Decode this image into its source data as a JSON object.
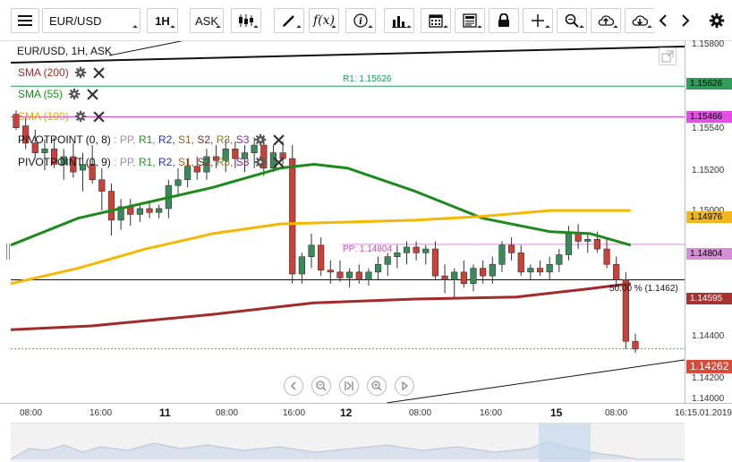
{
  "toolbar": {
    "symbol": "EUR/USD",
    "interval": "1H",
    "side": "ASK",
    "icons": [
      "menu-icon",
      "candles-icon",
      "draw-pen-icon",
      "function-fx-icon",
      "info-icon",
      "indicators-bars-icon",
      "calendar-icon",
      "news-icon",
      "lock-icon",
      "crosshair-icon",
      "zoom-icon",
      "cloud-upload-icon",
      "cloud-download-icon",
      "chevron-left-icon",
      "chevron-right-icon",
      "gear-icon"
    ]
  },
  "legend": {
    "instrument": "EUR/USD, 1H, ASK",
    "sma200": "SMA (200)",
    "sma55": "SMA (55)",
    "sma100": "SMA (100)",
    "pivot1_name": "PIVOTPOINT (0, 8)",
    "pivot2_name": "PIVOTPOINT (0, 9)",
    "pivot_sep": " : ",
    "pivot_items": [
      {
        "text": "PP,",
        "color": "#a8a"
      },
      {
        "text": " R1,",
        "color": "#2a8a2a"
      },
      {
        "text": " R2,",
        "color": "#2233aa"
      },
      {
        "text": " S1,",
        "color": "#aa5522"
      },
      {
        "text": " S2,",
        "color": "#7a2a2a"
      },
      {
        "text": " R3,",
        "color": "#8a7a22"
      },
      {
        "text": " S3",
        "color": "#8a2a8a"
      }
    ]
  },
  "annotations": {
    "r1": "R1: 1.15626",
    "pp": "PP: 1.14804",
    "fib": "50.00 % (1.1462)"
  },
  "price_tags": [
    {
      "text": "1.15626",
      "bg": "#2e9e5a",
      "color": "#000",
      "value": 1.15626
    },
    {
      "text": "1.15466",
      "bg": "#e34fe3",
      "color": "#000",
      "value": 1.15466
    },
    {
      "text": "1.14976",
      "bg": "#f3b61f",
      "color": "#000",
      "value": 1.14976
    },
    {
      "text": "1.14804",
      "bg": "#d58fd5",
      "color": "#000",
      "value": 1.14804
    },
    {
      "text": "1.14595",
      "bg": "#a83232",
      "color": "#ffffff",
      "value": 1.14595
    },
    {
      "text": "1.14262",
      "bg": "#d94a3a",
      "color": "#ffffff",
      "value": 1.14262
    }
  ],
  "axis": {
    "y_ticks": [
      "1.15800",
      "1.15540",
      "1.15200",
      "1.15000",
      "1.14400",
      "1.14200",
      "1.14000"
    ],
    "x_ticks": [
      {
        "text": "08:00",
        "day": false
      },
      {
        "text": "16:00",
        "day": false
      },
      {
        "text": "11",
        "day": true
      },
      {
        "text": "08:00",
        "day": false
      },
      {
        "text": "16:00",
        "day": false
      },
      {
        "text": "12",
        "day": true
      },
      {
        "text": "08:00",
        "day": false
      },
      {
        "text": "16:00",
        "day": false
      },
      {
        "text": "15",
        "day": true
      },
      {
        "text": "08:00",
        "day": false
      },
      {
        "text": "16:15.01.2019",
        "day": false
      }
    ]
  },
  "nav_buttons": [
    "nav-back-icon",
    "zoom-out-icon",
    "reset-view-icon",
    "zoom-in-icon",
    "nav-forward-icon"
  ],
  "colors": {
    "sma200": "#a32a2a",
    "sma55": "#1e8a1e",
    "sma100": "#f5b800",
    "pivot_magenta": "#d63ad6",
    "r1_green": "#1e9a5a",
    "up": "#3a8a5a",
    "down": "#c8423a"
  },
  "chart_data": {
    "type": "candlestick",
    "title": "EUR/USD, 1H, ASK",
    "ylim": [
      1.1398,
      1.1586
    ],
    "x": [
      "10.01 08:00",
      "10.01 16:00",
      "11.01 00:00",
      "11.01 08:00",
      "11.01 16:00",
      "12.01 00:00",
      "14.01 08:00",
      "14.01 16:00",
      "15.01 00:00",
      "15.01 08:00",
      "15.01 16:00"
    ],
    "candles": [
      {
        "o": 1.1548,
        "h": 1.155,
        "l": 1.154,
        "c": 1.1541
      },
      {
        "o": 1.1542,
        "h": 1.1546,
        "l": 1.153,
        "c": 1.1533
      },
      {
        "o": 1.1533,
        "h": 1.154,
        "l": 1.1525,
        "c": 1.1528
      },
      {
        "o": 1.1528,
        "h": 1.1535,
        "l": 1.1519,
        "c": 1.153
      },
      {
        "o": 1.153,
        "h": 1.1536,
        "l": 1.152,
        "c": 1.1522
      },
      {
        "o": 1.1522,
        "h": 1.153,
        "l": 1.1514,
        "c": 1.1526
      },
      {
        "o": 1.1526,
        "h": 1.1533,
        "l": 1.1515,
        "c": 1.1518
      },
      {
        "o": 1.1519,
        "h": 1.1528,
        "l": 1.1508,
        "c": 1.1522
      },
      {
        "o": 1.1522,
        "h": 1.1532,
        "l": 1.1512,
        "c": 1.1514
      },
      {
        "o": 1.1514,
        "h": 1.152,
        "l": 1.1498,
        "c": 1.1508
      },
      {
        "o": 1.1508,
        "h": 1.1512,
        "l": 1.1485,
        "c": 1.1493
      },
      {
        "o": 1.1493,
        "h": 1.1504,
        "l": 1.1488,
        "c": 1.15
      },
      {
        "o": 1.15,
        "h": 1.1504,
        "l": 1.149,
        "c": 1.1496
      },
      {
        "o": 1.1496,
        "h": 1.1502,
        "l": 1.1492,
        "c": 1.1499
      },
      {
        "o": 1.1499,
        "h": 1.1503,
        "l": 1.1494,
        "c": 1.1497
      },
      {
        "o": 1.1497,
        "h": 1.1501,
        "l": 1.1494,
        "c": 1.1499
      },
      {
        "o": 1.1499,
        "h": 1.1514,
        "l": 1.1494,
        "c": 1.1511
      },
      {
        "o": 1.1511,
        "h": 1.152,
        "l": 1.1505,
        "c": 1.1514
      },
      {
        "o": 1.1514,
        "h": 1.1525,
        "l": 1.151,
        "c": 1.1521
      },
      {
        "o": 1.1521,
        "h": 1.1526,
        "l": 1.1514,
        "c": 1.1518
      },
      {
        "o": 1.1518,
        "h": 1.153,
        "l": 1.1514,
        "c": 1.1526
      },
      {
        "o": 1.1526,
        "h": 1.1532,
        "l": 1.152,
        "c": 1.1524
      },
      {
        "o": 1.1524,
        "h": 1.1535,
        "l": 1.1518,
        "c": 1.153
      },
      {
        "o": 1.153,
        "h": 1.1534,
        "l": 1.152,
        "c": 1.1525
      },
      {
        "o": 1.1525,
        "h": 1.1532,
        "l": 1.1518,
        "c": 1.1528
      },
      {
        "o": 1.1528,
        "h": 1.1536,
        "l": 1.152,
        "c": 1.1532
      },
      {
        "o": 1.1532,
        "h": 1.1537,
        "l": 1.1516,
        "c": 1.152
      },
      {
        "o": 1.152,
        "h": 1.1532,
        "l": 1.1518,
        "c": 1.1528
      },
      {
        "o": 1.1528,
        "h": 1.1534,
        "l": 1.1522,
        "c": 1.1525
      },
      {
        "o": 1.1525,
        "h": 1.1532,
        "l": 1.146,
        "c": 1.1465
      },
      {
        "o": 1.1465,
        "h": 1.1476,
        "l": 1.146,
        "c": 1.1474
      },
      {
        "o": 1.1474,
        "h": 1.1486,
        "l": 1.1468,
        "c": 1.148
      },
      {
        "o": 1.148,
        "h": 1.1484,
        "l": 1.1464,
        "c": 1.1467
      },
      {
        "o": 1.1467,
        "h": 1.1472,
        "l": 1.146,
        "c": 1.1466
      },
      {
        "o": 1.1466,
        "h": 1.1472,
        "l": 1.1461,
        "c": 1.1463
      },
      {
        "o": 1.1463,
        "h": 1.1468,
        "l": 1.1458,
        "c": 1.1466
      },
      {
        "o": 1.1466,
        "h": 1.147,
        "l": 1.146,
        "c": 1.1462
      },
      {
        "o": 1.1462,
        "h": 1.1468,
        "l": 1.1459,
        "c": 1.1466
      },
      {
        "o": 1.1466,
        "h": 1.1474,
        "l": 1.1462,
        "c": 1.147
      },
      {
        "o": 1.147,
        "h": 1.1476,
        "l": 1.1464,
        "c": 1.1474
      },
      {
        "o": 1.1474,
        "h": 1.148,
        "l": 1.1468,
        "c": 1.1476
      },
      {
        "o": 1.1476,
        "h": 1.1482,
        "l": 1.147,
        "c": 1.1479
      },
      {
        "o": 1.1479,
        "h": 1.1482,
        "l": 1.1472,
        "c": 1.1476
      },
      {
        "o": 1.1476,
        "h": 1.148,
        "l": 1.147,
        "c": 1.1478
      },
      {
        "o": 1.1478,
        "h": 1.1482,
        "l": 1.1462,
        "c": 1.1464
      },
      {
        "o": 1.1464,
        "h": 1.147,
        "l": 1.1455,
        "c": 1.1462
      },
      {
        "o": 1.1462,
        "h": 1.1468,
        "l": 1.1452,
        "c": 1.1466
      },
      {
        "o": 1.1466,
        "h": 1.1472,
        "l": 1.1458,
        "c": 1.146
      },
      {
        "o": 1.146,
        "h": 1.147,
        "l": 1.1456,
        "c": 1.1468
      },
      {
        "o": 1.1468,
        "h": 1.1472,
        "l": 1.146,
        "c": 1.1464
      },
      {
        "o": 1.1464,
        "h": 1.1474,
        "l": 1.146,
        "c": 1.147
      },
      {
        "o": 1.147,
        "h": 1.1482,
        "l": 1.1466,
        "c": 1.148
      },
      {
        "o": 1.148,
        "h": 1.1484,
        "l": 1.1472,
        "c": 1.1476
      },
      {
        "o": 1.1476,
        "h": 1.148,
        "l": 1.1464,
        "c": 1.1466
      },
      {
        "o": 1.1466,
        "h": 1.147,
        "l": 1.1462,
        "c": 1.1468
      },
      {
        "o": 1.1468,
        "h": 1.1472,
        "l": 1.1464,
        "c": 1.1466
      },
      {
        "o": 1.1466,
        "h": 1.1474,
        "l": 1.1462,
        "c": 1.147
      },
      {
        "o": 1.147,
        "h": 1.1478,
        "l": 1.1466,
        "c": 1.1475
      },
      {
        "o": 1.1475,
        "h": 1.149,
        "l": 1.1472,
        "c": 1.1486
      },
      {
        "o": 1.1486,
        "h": 1.1491,
        "l": 1.1478,
        "c": 1.1482
      },
      {
        "o": 1.1482,
        "h": 1.1486,
        "l": 1.1476,
        "c": 1.1483
      },
      {
        "o": 1.1483,
        "h": 1.1487,
        "l": 1.1476,
        "c": 1.1478
      },
      {
        "o": 1.1478,
        "h": 1.1483,
        "l": 1.1468,
        "c": 1.147
      },
      {
        "o": 1.147,
        "h": 1.1474,
        "l": 1.1458,
        "c": 1.1462
      },
      {
        "o": 1.1462,
        "h": 1.1466,
        "l": 1.1426,
        "c": 1.143
      },
      {
        "o": 1.143,
        "h": 1.1434,
        "l": 1.1424,
        "c": 1.1426
      }
    ],
    "series": [
      {
        "name": "SMA (200)",
        "x": [
          0,
          0.12,
          0.3,
          0.45,
          0.6,
          0.75,
          0.85,
          0.92
        ],
        "values": [
          1.1436,
          1.1438,
          1.1444,
          1.145,
          1.1452,
          1.1453,
          1.1457,
          1.146
        ]
      },
      {
        "name": "SMA (55)",
        "x": [
          0,
          0.1,
          0.2,
          0.3,
          0.4,
          0.45,
          0.5,
          0.6,
          0.7,
          0.8,
          0.86,
          0.92
        ],
        "values": [
          1.148,
          1.1494,
          1.1502,
          1.151,
          1.152,
          1.1522,
          1.152,
          1.1508,
          1.1494,
          1.1487,
          1.1486,
          1.148
        ]
      },
      {
        "name": "SMA (100)",
        "x": [
          0,
          0.1,
          0.2,
          0.3,
          0.4,
          0.5,
          0.6,
          0.7,
          0.8,
          0.9,
          0.92
        ],
        "values": [
          1.146,
          1.1468,
          1.1478,
          1.1486,
          1.1491,
          1.1492,
          1.1493,
          1.1495,
          1.1498,
          1.1498,
          1.1498
        ]
      }
    ],
    "levels": [
      {
        "name": "R1",
        "value": 1.15626
      },
      {
        "name": "PP",
        "value": 1.14804
      },
      {
        "name": "magenta",
        "value": 1.15466
      },
      {
        "name": "fib 50.00 %",
        "value": 1.1462
      },
      {
        "name": "last",
        "value": 1.14262
      }
    ]
  }
}
